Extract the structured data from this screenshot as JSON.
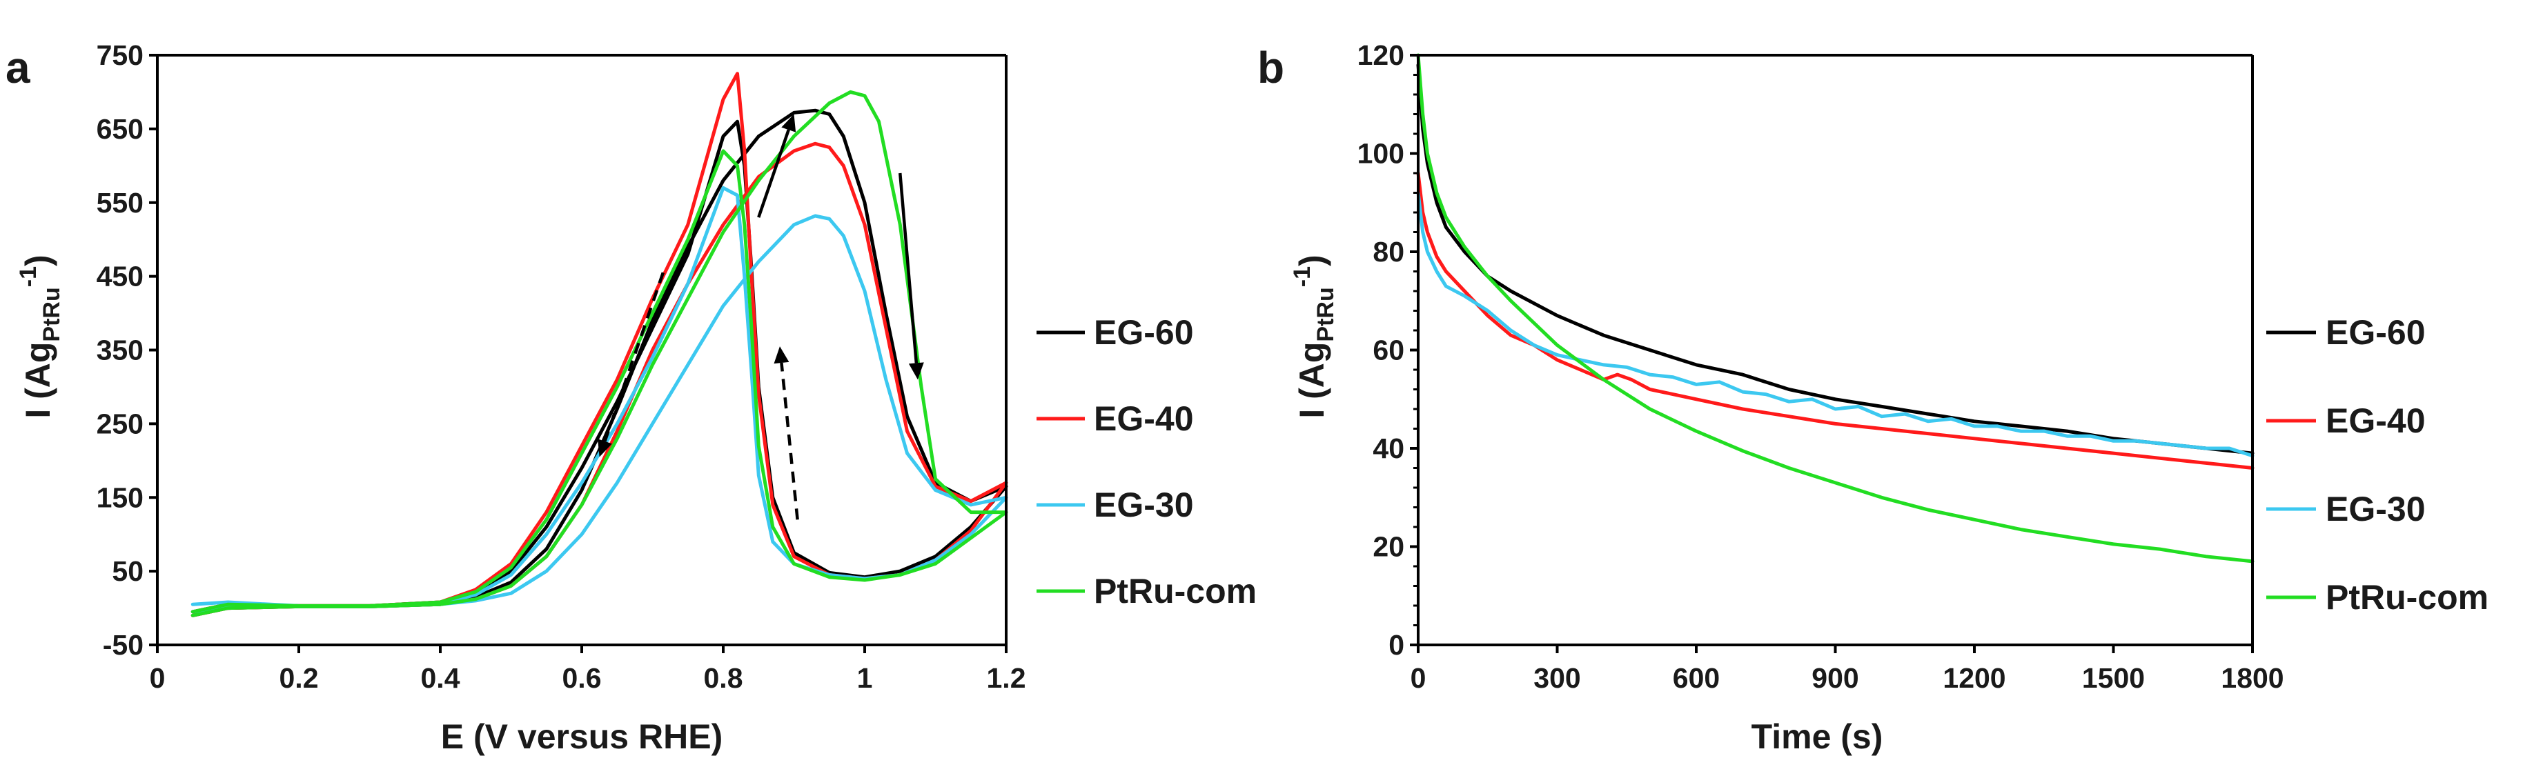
{
  "chart_data": [
    {
      "type": "line",
      "panel_label": "a",
      "xlabel": "E (V versus RHE)",
      "ylabel": "I (Ag",
      "ylabel_sub": "PtRu",
      "ylabel_sup": "-1",
      "ylabel_close": ")",
      "xlim": [
        0,
        1.2
      ],
      "ylim": [
        -50,
        750
      ],
      "xticks": [
        0,
        0.2,
        0.4,
        0.6,
        0.8,
        1.0,
        1.2
      ],
      "xtick_labels": [
        "0",
        "0.2",
        "0.4",
        "0.6",
        "0.8",
        "1",
        "1.2"
      ],
      "yticks": [
        -50,
        50,
        150,
        250,
        350,
        450,
        550,
        650,
        750
      ],
      "ytick_labels": [
        "-50",
        "50",
        "150",
        "250",
        "350",
        "450",
        "550",
        "650",
        "750"
      ],
      "legend_position": "right",
      "series": [
        {
          "name": "EG-60",
          "color": "#000000",
          "x": [
            0.05,
            0.1,
            0.2,
            0.3,
            0.4,
            0.45,
            0.5,
            0.55,
            0.6,
            0.65,
            0.7,
            0.75,
            0.8,
            0.85,
            0.9,
            0.93,
            0.95,
            0.97,
            1.0,
            1.03,
            1.06,
            1.1,
            1.15,
            1.2,
            1.15,
            1.1,
            1.05,
            1.0,
            0.95,
            0.9,
            0.87,
            0.85,
            0.84,
            0.83,
            0.82,
            0.8,
            0.75,
            0.7,
            0.65,
            0.6,
            0.55,
            0.5,
            0.45,
            0.4,
            0.3,
            0.2,
            0.1,
            0.05
          ],
          "y": [
            -10,
            0,
            2,
            2,
            5,
            15,
            35,
            80,
            160,
            270,
            390,
            490,
            580,
            640,
            672,
            675,
            670,
            640,
            550,
            400,
            260,
            170,
            145,
            165,
            110,
            70,
            50,
            42,
            48,
            75,
            150,
            300,
            460,
            600,
            660,
            640,
            480,
            380,
            280,
            190,
            110,
            50,
            20,
            8,
            3,
            3,
            5,
            -5
          ]
        },
        {
          "name": "EG-40",
          "color": "#ff1a1a",
          "x": [
            0.05,
            0.1,
            0.2,
            0.3,
            0.4,
            0.45,
            0.5,
            0.55,
            0.6,
            0.65,
            0.7,
            0.75,
            0.8,
            0.85,
            0.9,
            0.93,
            0.95,
            0.97,
            1.0,
            1.03,
            1.06,
            1.1,
            1.15,
            1.2,
            1.15,
            1.1,
            1.05,
            1.0,
            0.95,
            0.9,
            0.87,
            0.85,
            0.84,
            0.83,
            0.82,
            0.8,
            0.75,
            0.7,
            0.65,
            0.6,
            0.55,
            0.5,
            0.45,
            0.4,
            0.3,
            0.2,
            0.1,
            0.05
          ],
          "y": [
            -10,
            0,
            2,
            2,
            5,
            12,
            30,
            70,
            140,
            240,
            350,
            440,
            520,
            585,
            620,
            630,
            625,
            600,
            520,
            380,
            240,
            165,
            145,
            170,
            105,
            65,
            45,
            40,
            45,
            70,
            140,
            290,
            450,
            620,
            725,
            690,
            520,
            420,
            310,
            220,
            130,
            60,
            25,
            8,
            3,
            3,
            5,
            -5
          ]
        },
        {
          "name": "EG-30",
          "color": "#3cc8f0",
          "x": [
            0.05,
            0.1,
            0.2,
            0.3,
            0.4,
            0.45,
            0.5,
            0.55,
            0.6,
            0.65,
            0.7,
            0.75,
            0.8,
            0.85,
            0.9,
            0.93,
            0.95,
            0.97,
            1.0,
            1.03,
            1.06,
            1.1,
            1.15,
            1.2,
            1.15,
            1.1,
            1.05,
            1.0,
            0.95,
            0.9,
            0.87,
            0.85,
            0.84,
            0.83,
            0.82,
            0.8,
            0.75,
            0.7,
            0.65,
            0.6,
            0.55,
            0.5,
            0.45,
            0.4,
            0.3,
            0.2,
            0.1,
            0.05
          ],
          "y": [
            -5,
            2,
            2,
            2,
            5,
            10,
            20,
            50,
            100,
            170,
            250,
            330,
            410,
            470,
            520,
            532,
            528,
            505,
            430,
            310,
            210,
            160,
            140,
            150,
            100,
            65,
            45,
            40,
            45,
            60,
            90,
            180,
            320,
            450,
            560,
            570,
            440,
            340,
            250,
            170,
            100,
            45,
            18,
            6,
            2,
            3,
            8,
            5
          ]
        },
        {
          "name": "PtRu-com",
          "color": "#22dd22",
          "x": [
            0.05,
            0.1,
            0.2,
            0.3,
            0.4,
            0.45,
            0.5,
            0.55,
            0.6,
            0.65,
            0.7,
            0.75,
            0.8,
            0.85,
            0.9,
            0.95,
            0.98,
            1.0,
            1.02,
            1.05,
            1.08,
            1.1,
            1.15,
            1.2,
            1.15,
            1.1,
            1.05,
            1.0,
            0.95,
            0.9,
            0.87,
            0.85,
            0.84,
            0.83,
            0.82,
            0.8,
            0.75,
            0.7,
            0.65,
            0.6,
            0.55,
            0.5,
            0.45,
            0.4,
            0.3,
            0.2,
            0.1,
            0.05
          ],
          "y": [
            -10,
            0,
            2,
            2,
            5,
            12,
            30,
            70,
            140,
            230,
            330,
            420,
            510,
            580,
            640,
            685,
            700,
            695,
            660,
            520,
            300,
            175,
            130,
            130,
            95,
            60,
            45,
            38,
            42,
            60,
            110,
            220,
            380,
            520,
            600,
            620,
            500,
            400,
            300,
            210,
            120,
            55,
            22,
            8,
            3,
            3,
            5,
            -5
          ]
        }
      ],
      "annotations": [
        {
          "kind": "solid-arrow",
          "from": [
            0.85,
            530
          ],
          "to": [
            0.9,
            670
          ]
        },
        {
          "kind": "solid-arrow",
          "from": [
            1.05,
            590
          ],
          "to": [
            1.075,
            310
          ]
        },
        {
          "kind": "dashed-arrow",
          "from": [
            0.715,
            455
          ],
          "to": [
            0.625,
            205
          ]
        },
        {
          "kind": "dashed-arrow",
          "from": [
            0.905,
            120
          ],
          "to": [
            0.88,
            355
          ]
        }
      ]
    },
    {
      "type": "line",
      "panel_label": "b",
      "xlabel": "Time (s)",
      "ylabel": "I (Ag",
      "ylabel_sub": "PtRu",
      "ylabel_sup": "-1",
      "ylabel_close": ")",
      "xlim": [
        0,
        1800
      ],
      "ylim": [
        0,
        120
      ],
      "xticks": [
        0,
        300,
        600,
        900,
        1200,
        1500,
        1800
      ],
      "xtick_labels": [
        "0",
        "300",
        "600",
        "900",
        "1200",
        "1500",
        "1800"
      ],
      "yticks": [
        0,
        20,
        40,
        60,
        80,
        100,
        120
      ],
      "ytick_labels": [
        "0",
        "20",
        "40",
        "60",
        "80",
        "100",
        "120"
      ],
      "legend_position": "right",
      "series": [
        {
          "name": "EG-60",
          "color": "#000000",
          "x": [
            0,
            10,
            20,
            40,
            60,
            100,
            150,
            200,
            300,
            400,
            500,
            600,
            700,
            800,
            900,
            1000,
            1100,
            1200,
            1300,
            1400,
            1500,
            1600,
            1700,
            1800
          ],
          "y": [
            118,
            105,
            98,
            90,
            85,
            80,
            75,
            72,
            67,
            63,
            60,
            57,
            55,
            52,
            50,
            48.5,
            47,
            45.5,
            44.5,
            43.5,
            42,
            41,
            40,
            39
          ]
        },
        {
          "name": "EG-40",
          "color": "#ff1a1a",
          "x": [
            0,
            10,
            20,
            40,
            60,
            100,
            150,
            200,
            250,
            300,
            350,
            400,
            430,
            460,
            500,
            600,
            700,
            800,
            900,
            1000,
            1100,
            1200,
            1300,
            1400,
            1500,
            1600,
            1700,
            1800
          ],
          "y": [
            96,
            88,
            84,
            79,
            76,
            72,
            67,
            63,
            61,
            58,
            56,
            54,
            55,
            54,
            52,
            50,
            48,
            46.5,
            45,
            44,
            43,
            42,
            41,
            40,
            39,
            38,
            37,
            36
          ]
        },
        {
          "name": "EG-30",
          "color": "#3cc8f0",
          "x": [
            0,
            10,
            20,
            40,
            60,
            100,
            150,
            200,
            250,
            300,
            350,
            400,
            450,
            500,
            550,
            600,
            650,
            700,
            750,
            800,
            850,
            900,
            950,
            1000,
            1050,
            1100,
            1150,
            1200,
            1250,
            1300,
            1350,
            1400,
            1450,
            1500,
            1550,
            1600,
            1650,
            1700,
            1750,
            1800
          ],
          "y": [
            92,
            84,
            80,
            76,
            73,
            71,
            68,
            64,
            61,
            59,
            58,
            57,
            56.5,
            55,
            54.5,
            53,
            53.5,
            51.5,
            51,
            49.5,
            50,
            48,
            48.5,
            46.5,
            47,
            45.5,
            46,
            44.5,
            44.5,
            43.5,
            43.5,
            42.5,
            42.5,
            41.5,
            41.5,
            41,
            40.5,
            40,
            40,
            38.5
          ]
        },
        {
          "name": "PtRu-com",
          "color": "#22dd22",
          "x": [
            0,
            10,
            20,
            40,
            60,
            100,
            150,
            200,
            300,
            400,
            500,
            600,
            700,
            800,
            900,
            1000,
            1100,
            1200,
            1300,
            1400,
            1500,
            1600,
            1700,
            1800
          ],
          "y": [
            120,
            108,
            100,
            92,
            87,
            81,
            75,
            70,
            61,
            54,
            48,
            43.5,
            39.5,
            36,
            33,
            30,
            27.5,
            25.5,
            23.5,
            22,
            20.5,
            19.5,
            18,
            17
          ]
        }
      ]
    }
  ]
}
